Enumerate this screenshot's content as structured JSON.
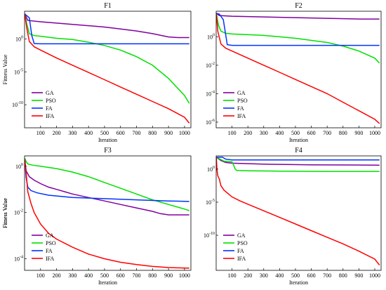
{
  "chart_data": [
    {
      "type": "line",
      "title": "F1",
      "xlabel": "Iteration",
      "ylabel": "Fitness Value",
      "xlim": [
        0,
        1040
      ],
      "xticks": [
        100,
        200,
        300,
        400,
        500,
        600,
        700,
        800,
        900,
        1000
      ],
      "yscale": "log",
      "ylim_exp": [
        -13.5,
        4.2
      ],
      "ytick_labels": [
        {
          "exp": 0,
          "label": "10^0"
        },
        {
          "exp": -5,
          "label": "10^-5"
        },
        {
          "exp": -10,
          "label": "10^-10"
        }
      ],
      "legend_position": "bottom-left",
      "series": [
        {
          "name": "GA",
          "color": "#8000a0",
          "x": [
            1,
            20,
            100,
            200,
            300,
            400,
            500,
            600,
            700,
            800,
            900,
            960,
            1000,
            1030
          ],
          "y_exp": [
            3.8,
            2.8,
            2.6,
            2.4,
            2.2,
            2.0,
            1.8,
            1.5,
            1.2,
            0.8,
            0.3,
            0.2,
            0.2,
            0.2
          ]
        },
        {
          "name": "PSO",
          "color": "#00e000",
          "x": [
            1,
            15,
            30,
            60,
            100,
            200,
            300,
            400,
            500,
            600,
            650,
            700,
            800,
            900,
            1000,
            1030
          ],
          "y_exp": [
            3.8,
            2.2,
            0.8,
            0.5,
            0.4,
            0.1,
            -0.1,
            -0.5,
            -1.0,
            -1.7,
            -2.2,
            -2.7,
            -4.0,
            -6.0,
            -8.6,
            -9.8
          ]
        },
        {
          "name": "FA",
          "color": "#0033ff",
          "x": [
            1,
            30,
            45,
            60,
            100,
            300,
            600,
            1030
          ],
          "y_exp": [
            3.8,
            3.2,
            0.5,
            -0.7,
            -0.75,
            -0.75,
            -0.75,
            -0.75
          ]
        },
        {
          "name": "IFA",
          "color": "#ff0000",
          "x": [
            1,
            15,
            30,
            60,
            100,
            200,
            300,
            400,
            500,
            600,
            700,
            800,
            900,
            1000,
            1030
          ],
          "y_exp": [
            3.8,
            1.5,
            -0.4,
            -1.2,
            -1.7,
            -2.9,
            -4.0,
            -5.1,
            -6.2,
            -7.3,
            -8.4,
            -9.5,
            -10.6,
            -11.9,
            -12.8
          ]
        }
      ]
    },
    {
      "type": "line",
      "title": "F2",
      "xlabel": "Iteration",
      "ylabel": "",
      "xlim": [
        0,
        1040
      ],
      "xticks": [
        100,
        200,
        300,
        400,
        500,
        600,
        700,
        800,
        900,
        1000
      ],
      "yscale": "log",
      "ylim_exp": [
        -6.4,
        1.8
      ],
      "ytick_labels": [
        {
          "exp": 0,
          "label": "10^0"
        },
        {
          "exp": -2,
          "label": "10^-2"
        },
        {
          "exp": -4,
          "label": "10^-4"
        },
        {
          "exp": -6,
          "label": "10^-6"
        }
      ],
      "legend_position": "bottom-left",
      "series": [
        {
          "name": "GA",
          "color": "#8000a0",
          "x": [
            1,
            20,
            100,
            300,
            500,
            700,
            900,
            1030
          ],
          "y_exp": [
            1.65,
            1.5,
            1.45,
            1.4,
            1.35,
            1.3,
            1.25,
            1.25
          ]
        },
        {
          "name": "PSO",
          "color": "#00e000",
          "x": [
            1,
            15,
            30,
            60,
            100,
            200,
            300,
            400,
            500,
            600,
            700,
            800,
            900,
            1000,
            1030
          ],
          "y_exp": [
            1.65,
            0.8,
            0.4,
            0.25,
            0.2,
            0.15,
            0.1,
            0.0,
            -0.1,
            -0.25,
            -0.4,
            -0.65,
            -1.0,
            -1.5,
            -1.85
          ]
        },
        {
          "name": "FA",
          "color": "#0033ff",
          "x": [
            1,
            20,
            45,
            70,
            100,
            300,
            600,
            1030
          ],
          "y_exp": [
            1.65,
            1.6,
            1.2,
            -0.55,
            -0.6,
            -0.6,
            -0.6,
            -0.6
          ]
        },
        {
          "name": "IFA",
          "color": "#ff0000",
          "x": [
            1,
            10,
            30,
            60,
            100,
            200,
            300,
            400,
            500,
            600,
            700,
            800,
            900,
            1000,
            1030
          ],
          "y_exp": [
            1.65,
            0.4,
            -0.5,
            -0.8,
            -1.0,
            -1.5,
            -2.0,
            -2.5,
            -3.0,
            -3.5,
            -4.0,
            -4.6,
            -5.2,
            -5.8,
            -6.1
          ]
        }
      ]
    },
    {
      "type": "line",
      "title": "F3",
      "xlabel": "Iteration",
      "ylabel": "Fitness Value",
      "xlim": [
        0,
        1040
      ],
      "xticks": [
        100,
        200,
        300,
        400,
        500,
        600,
        700,
        800,
        900,
        1000
      ],
      "yscale": "log",
      "ylim_exp": [
        -4.5,
        0.45
      ],
      "ytick_labels": [
        {
          "exp": 0,
          "label": "10^0"
        },
        {
          "exp": -2,
          "label": "10^-2"
        },
        {
          "exp": -4,
          "label": "10^-4"
        }
      ],
      "legend_position": "bottom-left",
      "series": [
        {
          "name": "GA",
          "color": "#8000a0",
          "x": [
            1,
            10,
            30,
            60,
            100,
            150,
            200,
            250,
            300,
            400,
            500,
            600,
            700,
            800,
            850,
            900,
            1000,
            1030
          ],
          "y_exp": [
            0.3,
            -0.2,
            -0.45,
            -0.6,
            -0.75,
            -0.9,
            -1.0,
            -1.1,
            -1.2,
            -1.35,
            -1.5,
            -1.65,
            -1.8,
            -1.95,
            -2.05,
            -2.1,
            -2.1,
            -2.1
          ]
        },
        {
          "name": "PSO",
          "color": "#00e000",
          "x": [
            1,
            10,
            20,
            50,
            100,
            200,
            300,
            400,
            500,
            600,
            700,
            800,
            900,
            1000,
            1030
          ],
          "y_exp": [
            0.35,
            0.2,
            0.1,
            0.05,
            0.0,
            -0.1,
            -0.25,
            -0.45,
            -0.7,
            -0.95,
            -1.2,
            -1.45,
            -1.65,
            -1.85,
            -1.92
          ]
        },
        {
          "name": "FA",
          "color": "#0033ff",
          "x": [
            1,
            10,
            20,
            40,
            80,
            150,
            300,
            500,
            700,
            900,
            1030
          ],
          "y_exp": [
            0.3,
            -0.5,
            -0.9,
            -1.05,
            -1.15,
            -1.25,
            -1.35,
            -1.4,
            -1.45,
            -1.5,
            -1.52
          ]
        },
        {
          "name": "IFA",
          "color": "#ff0000",
          "x": [
            1,
            10,
            20,
            40,
            60,
            100,
            150,
            200,
            300,
            400,
            500,
            600,
            700,
            800,
            900,
            1000,
            1030
          ],
          "y_exp": [
            0.3,
            -0.3,
            -1.1,
            -1.6,
            -2.0,
            -2.5,
            -2.9,
            -3.15,
            -3.5,
            -3.8,
            -4.0,
            -4.15,
            -4.25,
            -4.33,
            -4.38,
            -4.4,
            -4.4
          ]
        }
      ]
    },
    {
      "type": "line",
      "title": "F4",
      "xlabel": "Iteration",
      "ylabel": "Fitness Value",
      "xlim": [
        0,
        1040
      ],
      "xticks": [
        100,
        200,
        300,
        400,
        500,
        600,
        700,
        800,
        900,
        1000
      ],
      "yscale": "log",
      "ylim_exp": [
        -15.3,
        2.0
      ],
      "ytick_labels": [
        {
          "exp": 0,
          "label": "10^0"
        },
        {
          "exp": -5,
          "label": "10^-5"
        },
        {
          "exp": -10,
          "label": "10^-10"
        }
      ],
      "legend_position": "bottom-left",
      "series": [
        {
          "name": "GA",
          "color": "#8000a0",
          "x": [
            1,
            30,
            60,
            100,
            300,
            600,
            1030
          ],
          "y_exp": [
            1.8,
            1.3,
            1.0,
            0.9,
            0.75,
            0.65,
            0.6
          ]
        },
        {
          "name": "PSO",
          "color": "#00e000",
          "x": [
            1,
            50,
            100,
            110,
            120,
            130,
            200,
            400,
            700,
            1030
          ],
          "y_exp": [
            1.8,
            1.2,
            1.1,
            0.6,
            0.0,
            -0.2,
            -0.25,
            -0.3,
            -0.35,
            -0.35
          ]
        },
        {
          "name": "FA",
          "color": "#0033ff",
          "x": [
            1,
            40,
            60,
            100,
            300,
            1030
          ],
          "y_exp": [
            1.8,
            1.8,
            1.5,
            1.4,
            1.4,
            1.4
          ]
        },
        {
          "name": "IFA",
          "color": "#ff0000",
          "x": [
            1,
            5,
            10,
            20,
            30,
            50,
            100,
            150,
            200,
            300,
            400,
            500,
            600,
            700,
            800,
            900,
            1000,
            1030
          ],
          "y_exp": [
            1.8,
            0.0,
            -1.0,
            -1.5,
            -2.5,
            -3.2,
            -4.2,
            -4.8,
            -5.3,
            -6.3,
            -7.3,
            -8.3,
            -9.3,
            -10.3,
            -11.3,
            -12.4,
            -13.6,
            -14.5
          ]
        }
      ]
    }
  ]
}
